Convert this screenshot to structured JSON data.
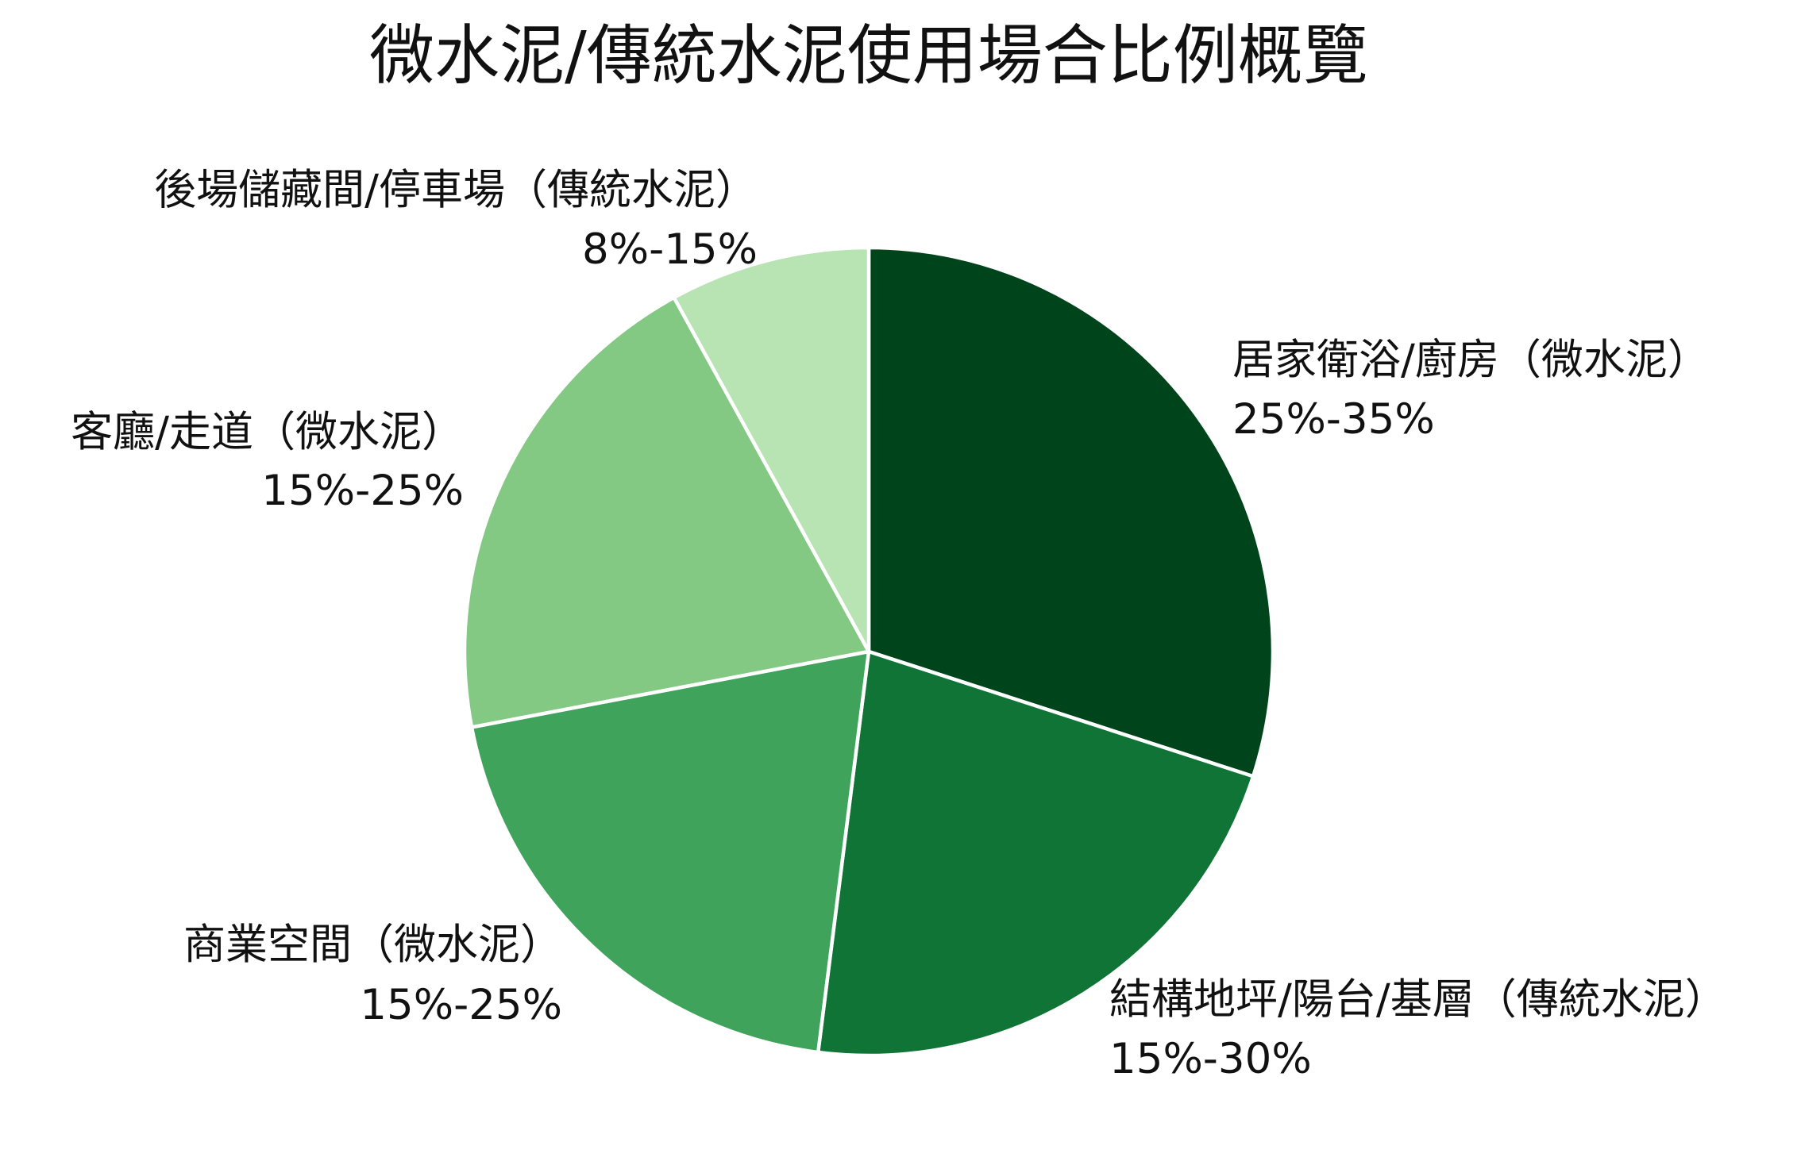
{
  "chart_data": {
    "type": "pie",
    "title": "微水泥/傳統水泥使用場合比例概覽",
    "categories": [
      "居家衛浴/廚房（微水泥）",
      "結構地坪/陽台/基層（傳統水泥）",
      "商業空間（微水泥）",
      "客廳/走道（微水泥）",
      "後場儲藏間/停車場（傳統水泥）"
    ],
    "ranges": [
      "25%-35%",
      "15%-30%",
      "15%-25%",
      "15%-25%",
      "8%-15%"
    ],
    "values": [
      30,
      22,
      20,
      20,
      8
    ],
    "colors": [
      "#00441b",
      "#0f7436",
      "#3fa35c",
      "#83c883",
      "#b8e3b3"
    ],
    "slice_edge_color": "#ffffff",
    "legend": "none"
  }
}
